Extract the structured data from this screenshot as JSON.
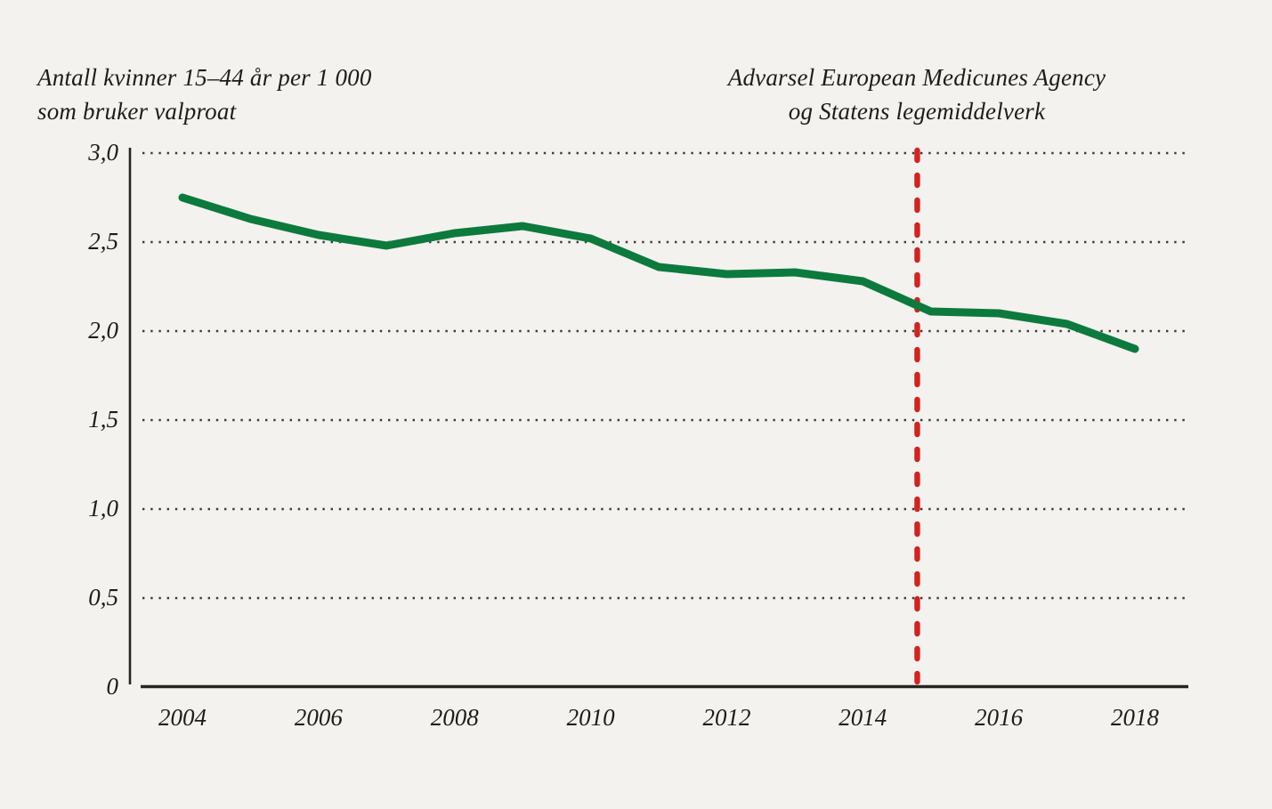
{
  "titles": {
    "y_axis_label_line1": "Antall kvinner 15–44 år per 1 000",
    "y_axis_label_line2": "som bruker valproat",
    "annotation_line1": "Advarsel European Medicunes Agency",
    "annotation_line2": "og Statens legemiddelverk"
  },
  "colors": {
    "background": "#f3f2ef",
    "text": "#1d1c19",
    "line": "#0d7a3d",
    "event_line": "#d4231f",
    "axis": "#262522",
    "grid_dots": "#3c3b37"
  },
  "chart_data": {
    "type": "line",
    "title": "Antall kvinner 15–44 år per 1 000 som bruker valproat",
    "xlabel": "",
    "ylabel": "Antall kvinner 15–44 år per 1 000 som bruker valproat",
    "x": [
      2004,
      2005,
      2006,
      2007,
      2008,
      2009,
      2010,
      2011,
      2012,
      2013,
      2014,
      2015,
      2016,
      2017,
      2018
    ],
    "series": [
      {
        "name": "Antall kvinner 15–44 år per 1 000 som bruker valproat",
        "values": [
          2.75,
          2.63,
          2.54,
          2.48,
          2.55,
          2.59,
          2.52,
          2.36,
          2.32,
          2.33,
          2.28,
          2.11,
          2.1,
          2.04,
          1.9
        ]
      }
    ],
    "xlim": [
      2003.2,
      2018.8
    ],
    "ylim": [
      0,
      3.0
    ],
    "yticks": [
      {
        "value": 3.0,
        "label": "3,0"
      },
      {
        "value": 2.5,
        "label": "2,5"
      },
      {
        "value": 2.0,
        "label": "2,0"
      },
      {
        "value": 1.5,
        "label": "1,5"
      },
      {
        "value": 1.0,
        "label": "1,0"
      },
      {
        "value": 0.5,
        "label": "0,5"
      },
      {
        "value": 0.0,
        "label": "0"
      }
    ],
    "xticks": [
      2004,
      2006,
      2008,
      2010,
      2012,
      2014,
      2016,
      2018
    ],
    "grid": "dotted-horizontal",
    "legend": "none",
    "annotation": {
      "type": "vertical-dashed-line",
      "x": 2014.8,
      "label_line1": "Advarsel European Medicunes Agency",
      "label_line2": "og Statens legemiddelverk"
    }
  }
}
